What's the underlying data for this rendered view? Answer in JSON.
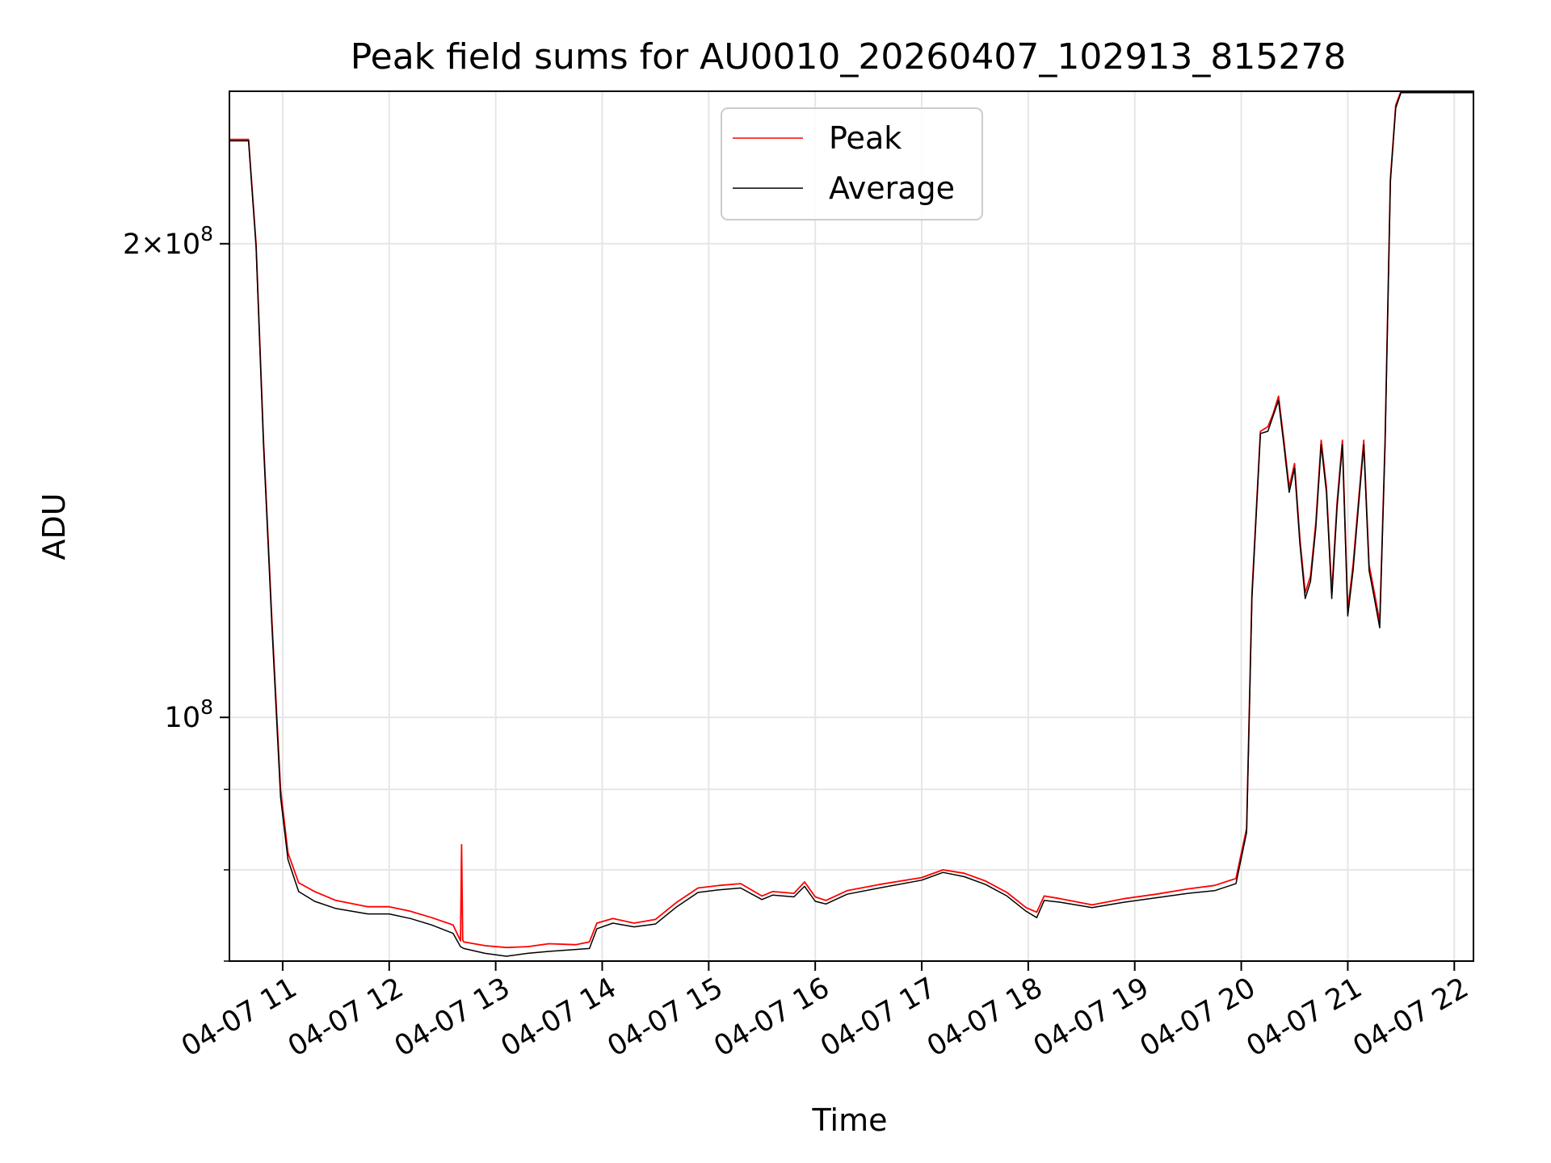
{
  "chart_data": {
    "type": "line",
    "title": "Peak field sums for AU0010_20260407_102913_815278",
    "xlabel": "Time",
    "ylabel": "ADU",
    "yscale": "log",
    "grid": true,
    "legend_position": "top-center",
    "xlim": [
      10.5,
      22.18
    ],
    "ylim": [
      70000000.0,
      250000000.0
    ],
    "xticks": [
      {
        "value": 11,
        "label": "04-07 11"
      },
      {
        "value": 12,
        "label": "04-07 12"
      },
      {
        "value": 13,
        "label": "04-07 13"
      },
      {
        "value": 14,
        "label": "04-07 14"
      },
      {
        "value": 15,
        "label": "04-07 15"
      },
      {
        "value": 16,
        "label": "04-07 16"
      },
      {
        "value": 17,
        "label": "04-07 17"
      },
      {
        "value": 18,
        "label": "04-07 18"
      },
      {
        "value": 19,
        "label": "04-07 19"
      },
      {
        "value": 20,
        "label": "04-07 20"
      },
      {
        "value": 21,
        "label": "04-07 21"
      },
      {
        "value": 22,
        "label": "04-07 22"
      }
    ],
    "yticks_major": [
      {
        "value": 100000000,
        "base": "10",
        "exp": "8",
        "mantissa": ""
      },
      {
        "value": 200000000,
        "base": "10",
        "exp": "8",
        "mantissa": "2×"
      }
    ],
    "yticks_minor": [
      70000000,
      80000000,
      90000000
    ],
    "series": [
      {
        "name": "Peak",
        "color": "#ff0000",
        "x": [
          10.5,
          10.68,
          10.75,
          10.82,
          10.9,
          10.98,
          11.05,
          11.15,
          11.3,
          11.5,
          11.8,
          12.0,
          12.2,
          12.4,
          12.6,
          12.67,
          12.68,
          12.69,
          12.7,
          12.9,
          13.1,
          13.3,
          13.5,
          13.75,
          13.88,
          13.95,
          14.1,
          14.3,
          14.5,
          14.7,
          14.9,
          15.1,
          15.3,
          15.5,
          15.6,
          15.8,
          15.9,
          16.0,
          16.1,
          16.3,
          16.6,
          17.0,
          17.2,
          17.4,
          17.6,
          17.8,
          17.98,
          18.08,
          18.15,
          18.3,
          18.6,
          18.9,
          19.2,
          19.5,
          19.75,
          19.95,
          20.05,
          20.1,
          20.18,
          20.25,
          20.3,
          20.35,
          20.4,
          20.45,
          20.5,
          20.55,
          20.6,
          20.65,
          20.7,
          20.75,
          20.8,
          20.85,
          20.9,
          20.95,
          21.0,
          21.05,
          21.1,
          21.15,
          21.2,
          21.25,
          21.3,
          21.35,
          21.4,
          21.45,
          21.5,
          21.55,
          21.6,
          21.65,
          21.7,
          21.75,
          21.8,
          21.9,
          21.95,
          22.0,
          22.05,
          22.18
        ],
        "values": [
          233000000,
          233000000,
          200000000,
          150000000,
          115000000,
          90000000,
          82000000,
          78500000,
          77500000,
          76500000,
          75800000,
          75800000,
          75300000,
          74600000,
          73800000,
          72100000,
          83000000,
          72200000,
          72000000,
          71600000,
          71400000,
          71500000,
          71800000,
          71700000,
          72000000,
          74000000,
          74500000,
          74000000,
          74400000,
          76300000,
          77900000,
          78200000,
          78400000,
          77000000,
          77500000,
          77300000,
          78600000,
          76900000,
          76500000,
          77600000,
          78300000,
          79100000,
          80000000,
          79600000,
          78700000,
          77400000,
          75700000,
          75200000,
          77000000,
          76700000,
          76000000,
          76700000,
          77200000,
          77800000,
          78200000,
          79000000,
          85000000,
          120000000,
          152000000,
          153000000,
          156000000,
          160000000,
          150000000,
          140000000,
          145000000,
          130000000,
          120000000,
          123000000,
          133000000,
          150000000,
          140000000,
          120000000,
          137000000,
          150000000,
          117000000,
          125000000,
          137000000,
          150000000,
          125000000,
          120000000,
          115000000,
          150000000,
          220000000,
          245000000,
          250000000,
          250000000,
          250000000,
          250000000,
          250000000,
          250000000,
          250000000,
          250000000,
          250000000,
          250000000,
          250000000,
          250000000
        ]
      },
      {
        "name": "Average",
        "color": "#000000",
        "x": [
          10.5,
          10.68,
          10.75,
          10.82,
          10.9,
          10.98,
          11.05,
          11.15,
          11.3,
          11.5,
          11.8,
          12.0,
          12.2,
          12.4,
          12.6,
          12.67,
          12.7,
          12.9,
          13.1,
          13.3,
          13.5,
          13.75,
          13.88,
          13.95,
          14.1,
          14.3,
          14.5,
          14.7,
          14.9,
          15.1,
          15.3,
          15.5,
          15.6,
          15.8,
          15.9,
          16.0,
          16.1,
          16.3,
          16.6,
          17.0,
          17.2,
          17.4,
          17.6,
          17.8,
          17.98,
          18.08,
          18.15,
          18.3,
          18.6,
          18.9,
          19.2,
          19.5,
          19.75,
          19.95,
          20.05,
          20.1,
          20.18,
          20.25,
          20.3,
          20.35,
          20.4,
          20.45,
          20.5,
          20.55,
          20.6,
          20.65,
          20.7,
          20.75,
          20.8,
          20.85,
          20.9,
          20.95,
          21.0,
          21.05,
          21.1,
          21.15,
          21.2,
          21.25,
          21.3,
          21.35,
          21.4,
          21.45,
          21.5,
          21.55,
          21.6,
          21.65,
          21.7,
          21.75,
          21.8,
          21.9,
          21.95,
          22.0,
          22.05,
          22.18
        ],
        "values": [
          232500000,
          232500000,
          199000000,
          149000000,
          114000000,
          89000000,
          81200000,
          77500000,
          76400000,
          75600000,
          75000000,
          75000000,
          74500000,
          73800000,
          72900000,
          71500000,
          71300000,
          70800000,
          70500000,
          70800000,
          71000000,
          71200000,
          71300000,
          73400000,
          74000000,
          73600000,
          73900000,
          75800000,
          77400000,
          77700000,
          77900000,
          76600000,
          77100000,
          76900000,
          78100000,
          76400000,
          76100000,
          77200000,
          77900000,
          78800000,
          79700000,
          79200000,
          78300000,
          77000000,
          75300000,
          74600000,
          76500000,
          76300000,
          75700000,
          76300000,
          76800000,
          77300000,
          77600000,
          78400000,
          84500000,
          119000000,
          151500000,
          152000000,
          155500000,
          159000000,
          149000000,
          139000000,
          144000000,
          129000000,
          119000000,
          122000000,
          132000000,
          149000000,
          139000000,
          119000000,
          136000000,
          149000000,
          116000000,
          124000000,
          136000000,
          149000000,
          124000000,
          119000000,
          114000000,
          149000000,
          219000000,
          244000000,
          249500000,
          249500000,
          249500000,
          249500000,
          249500000,
          249500000,
          249500000,
          249500000,
          249500000,
          249500000,
          249500000,
          249500000
        ]
      }
    ]
  }
}
